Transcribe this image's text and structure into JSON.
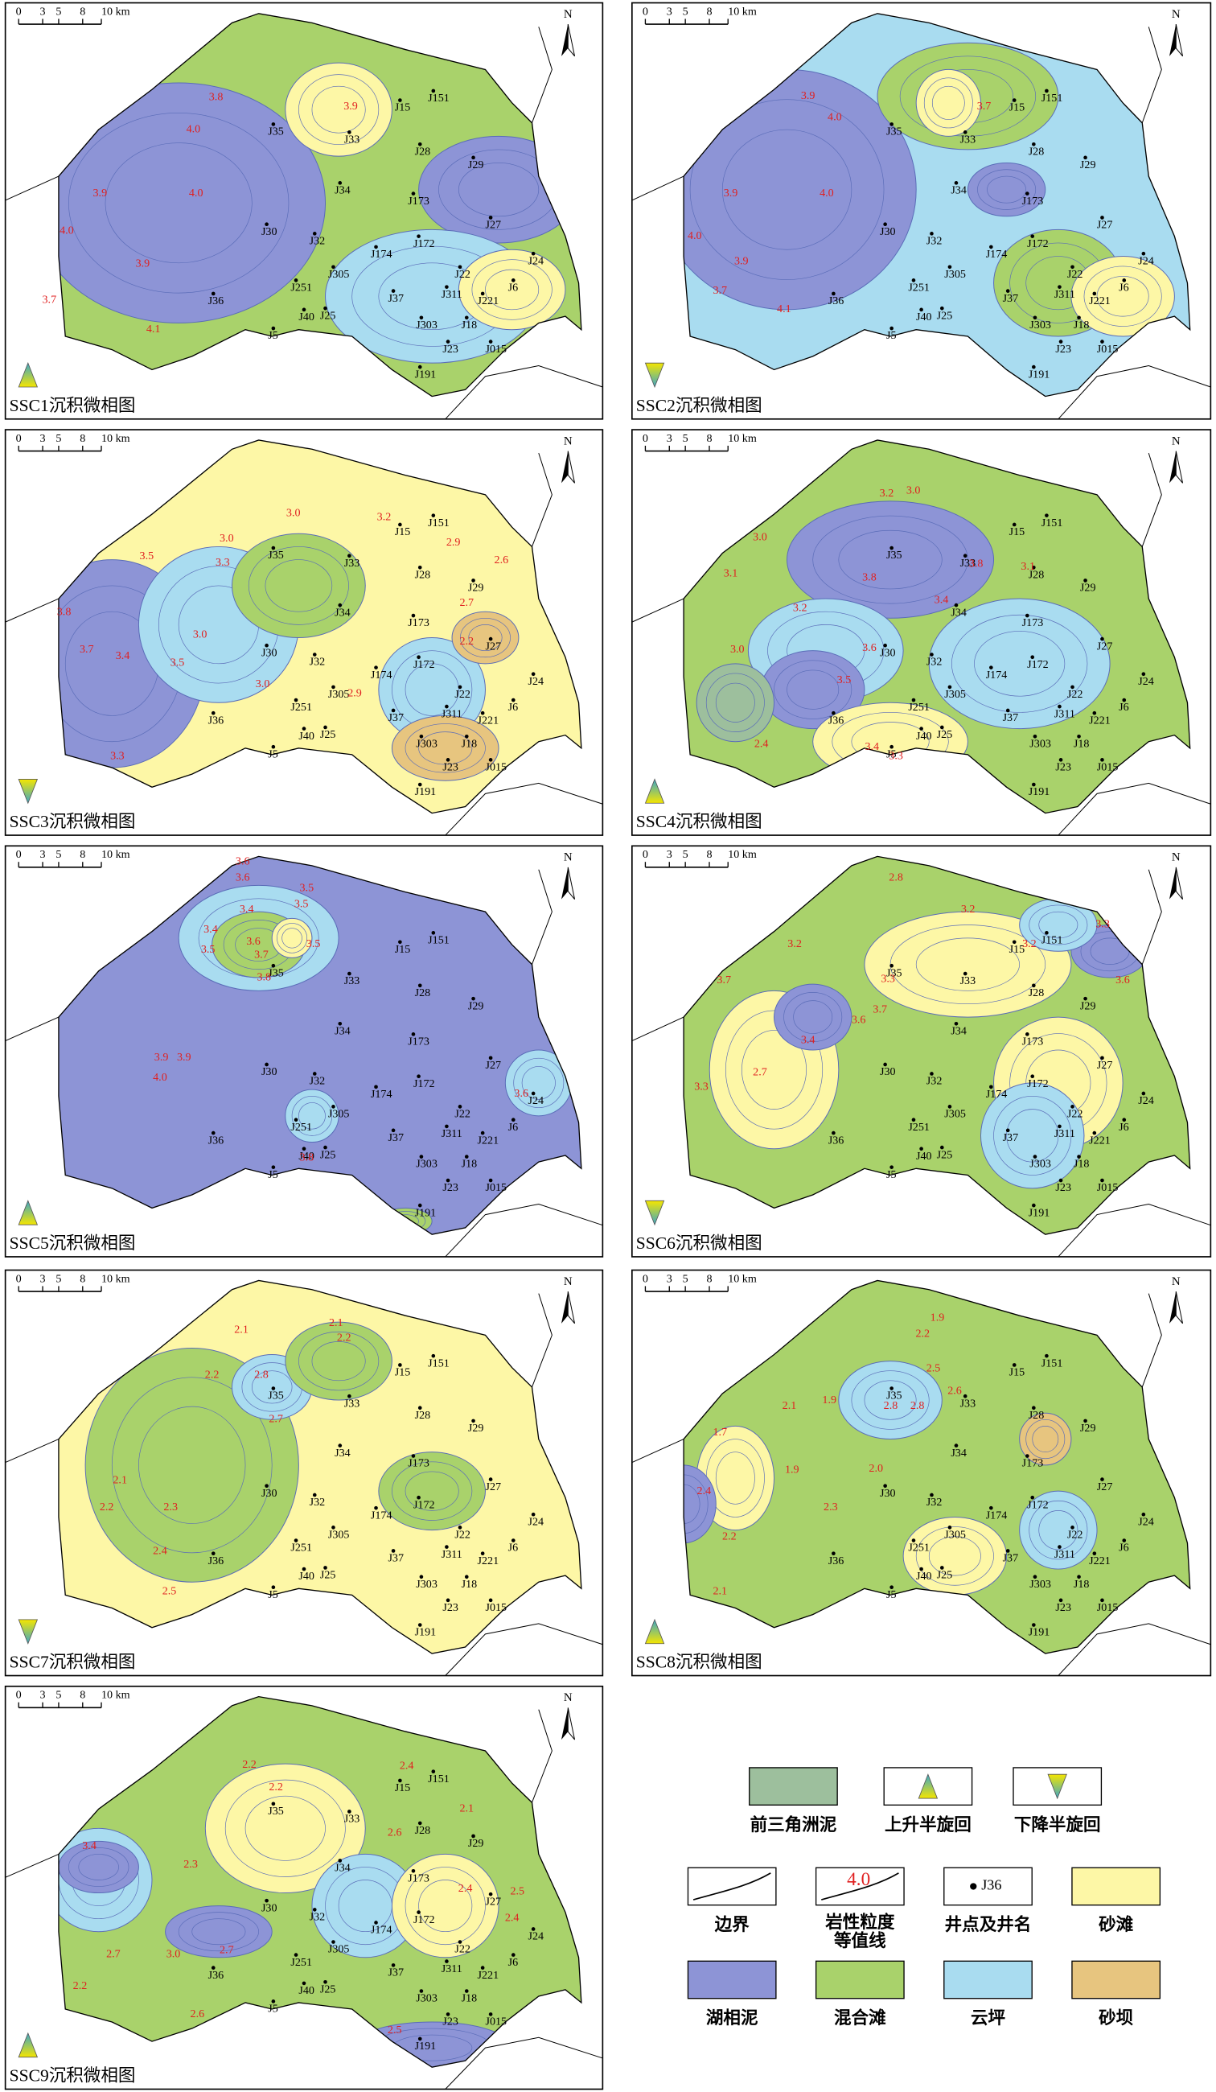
{
  "scale_labels": [
    "0",
    "3",
    "5",
    "8",
    "10 km"
  ],
  "north": "N",
  "wells": [
    "J151",
    "J15",
    "J35",
    "J33",
    "J28",
    "J29",
    "J34",
    "J173",
    "J27",
    "J30",
    "J32",
    "J174",
    "J172",
    "J305",
    "J24",
    "J22",
    "J6",
    "J251",
    "J37",
    "J311",
    "J221",
    "J36",
    "J40",
    "J25",
    "J303",
    "J18",
    "J5",
    "J23",
    "J015",
    "J191"
  ],
  "panels": [
    {
      "title": "SSC1沉积微相图",
      "contour_labels": [
        "3.8",
        "3.9",
        "4.0",
        "3.9",
        "4.0",
        "4.0",
        "3.9",
        "3.7",
        "4.1"
      ]
    },
    {
      "title": "SSC2沉积微相图",
      "contour_labels": [
        "3.9",
        "4.0",
        "3.9",
        "4.0",
        "4.0",
        "3.9",
        "3.7",
        "4.1",
        "3.7"
      ]
    },
    {
      "title": "SSC3沉积微相图",
      "contour_labels": [
        "3.0",
        "3.2",
        "3.0",
        "2.9",
        "2.6",
        "3.5",
        "3.3",
        "3.8",
        "3.0",
        "2.7",
        "2.2",
        "3.4",
        "3.7",
        "3.5",
        "3.0",
        "2.9",
        "3.3"
      ]
    },
    {
      "title": "SSC4沉积微相图",
      "contour_labels": [
        "3.2",
        "3.0",
        "3.0",
        "3.1",
        "3.8",
        "3.8",
        "3.1",
        "3.2",
        "3.4",
        "3.0",
        "3.6",
        "3.5",
        "2.4",
        "3.4",
        "3.3"
      ]
    },
    {
      "title": "SSC5沉积微相图",
      "contour_labels": [
        "3.6",
        "3.6",
        "3.5",
        "3.5",
        "3.4",
        "3.4",
        "3.6",
        "3.5",
        "3.7",
        "3.5",
        "3.8",
        "3.9",
        "3.9",
        "4.0",
        "3.6",
        "3.8"
      ]
    },
    {
      "title": "SSC6沉积微相图",
      "contour_labels": [
        "2.8",
        "3.2",
        "3.2",
        "3.2",
        "3.3",
        "3.6",
        "3.7",
        "3.3",
        "3.7",
        "3.4",
        "3.6",
        "2.7",
        "3.3"
      ]
    },
    {
      "title": "SSC7沉积微相图",
      "contour_labels": [
        "2.1",
        "2.1",
        "2.2",
        "2.2",
        "2.8",
        "2.7",
        "2.1",
        "2.2",
        "2.3",
        "2.4",
        "2.5"
      ]
    },
    {
      "title": "SSC8沉积微相图",
      "contour_labels": [
        "1.9",
        "2.2",
        "2.5",
        "2.6",
        "2.8",
        "2.8",
        "2.1",
        "1.9",
        "1.7",
        "2.0",
        "1.9",
        "2.4",
        "2.3",
        "2.2",
        "2.1"
      ]
    },
    {
      "title": "SSC9沉积微相图",
      "contour_labels": [
        "2.4",
        "2.2",
        "2.2",
        "2.1",
        "2.6",
        "3.4",
        "2.3",
        "2.4",
        "2.5",
        "2.4",
        "3.0",
        "2.7",
        "2.7",
        "2.2",
        "2.6",
        "2.5"
      ]
    }
  ],
  "legend": {
    "items": [
      {
        "label": "前三角洲泥"
      },
      {
        "label": "上升半旋回"
      },
      {
        "label": "下降半旋回"
      },
      {
        "label": "边界"
      },
      {
        "label_lines": [
          "岩性粒度",
          "等值线"
        ],
        "example": "4.0"
      },
      {
        "label": "井点及井名",
        "example": "J36"
      },
      {
        "label": "砂滩"
      },
      {
        "label": "湖相泥"
      },
      {
        "label": "混合滩"
      },
      {
        "label": "云坪"
      },
      {
        "label": "砂坝"
      }
    ]
  }
}
